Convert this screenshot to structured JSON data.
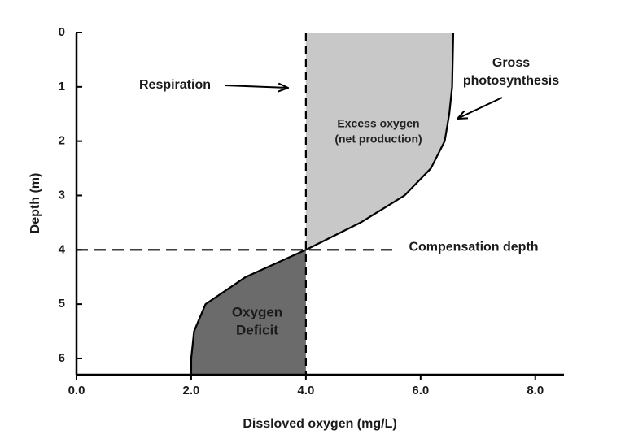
{
  "chart_data": {
    "type": "depth-profile",
    "x_label": "Dissloved oxygen (mg/L)",
    "y_label": "Depth (m)",
    "xlim": [
      0,
      8.5
    ],
    "ylim": [
      0,
      6.3
    ],
    "y_inverted": true,
    "xticks": [
      {
        "value": 0,
        "label": "0.0"
      },
      {
        "value": 2,
        "label": "2.0"
      },
      {
        "value": 4,
        "label": "4.0"
      },
      {
        "value": 6,
        "label": "6.0"
      },
      {
        "value": 8,
        "label": "8.0"
      }
    ],
    "yticks": [
      0,
      1,
      2,
      3,
      4,
      5,
      6
    ],
    "profile": {
      "color": "#000000",
      "depth": [
        0,
        0.5,
        1,
        1.5,
        2,
        2.5,
        3,
        3.5,
        4,
        4.5,
        5,
        5.5,
        6,
        6.3
      ],
      "oxygen": [
        6.57,
        6.56,
        6.55,
        6.5,
        6.42,
        6.18,
        5.72,
        4.95,
        4.0,
        2.95,
        2.25,
        2.05,
        2.0,
        2.0
      ]
    },
    "respiration": 4.0,
    "compensation_depth": 4,
    "excess_color": "#c8c8c8",
    "deficit_color": "#6b6b6b",
    "annotations": {
      "respiration": "Respiration",
      "photosynthesis": [
        "Gross",
        "photosynthesis"
      ],
      "excess": [
        "Excess oxygen",
        "(net production)"
      ],
      "compensation": "Compensation depth",
      "deficit": [
        "Oxygen",
        "Deficit"
      ]
    }
  }
}
